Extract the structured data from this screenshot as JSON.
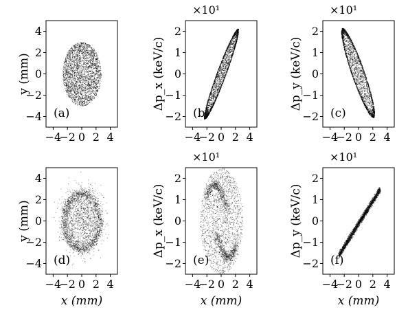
{
  "chart_data": [
    {
      "panel": "(a)",
      "type": "scatter",
      "xlabel": "",
      "ylabel": "y (mm)",
      "xlim": [
        -5,
        5
      ],
      "ylim": [
        -5,
        5
      ],
      "xticks": [
        -4,
        -2,
        0,
        2,
        4
      ],
      "yticks": [
        -4,
        -2,
        0,
        2,
        4
      ],
      "xtick_labels": [
        "−4",
        "−2",
        "0",
        "2",
        "4"
      ],
      "ytick_labels": [
        "−4",
        "−2",
        "0",
        "2",
        "4"
      ],
      "multiplier": "",
      "distribution": {
        "shape": "filled-ellipse",
        "center": [
          0,
          0
        ],
        "semi_axes": [
          2.7,
          3.0
        ],
        "tilt_deg": 0,
        "points": 2600
      }
    },
    {
      "panel": "(b)",
      "type": "scatter",
      "xlabel": "",
      "ylabel": "Δp_x (keV/c)",
      "xlim": [
        -5,
        5
      ],
      "ylim": [
        -2.5,
        2.5
      ],
      "xticks": [
        -4,
        -2,
        0,
        2,
        4
      ],
      "yticks": [
        -2,
        -1,
        0,
        1,
        2
      ],
      "xtick_labels": [
        "−4",
        "−2",
        "0",
        "2",
        "4"
      ],
      "ytick_labels": [
        "−2",
        "−1",
        "0",
        "1",
        "2"
      ],
      "multiplier": "×10¹",
      "distribution": {
        "shape": "thin-shell-ellipse",
        "from": [
          -2.4,
          -2.1
        ],
        "to": [
          2.4,
          2.1
        ],
        "minor_width": 0.9,
        "points": 2600
      }
    },
    {
      "panel": "(c)",
      "type": "scatter",
      "xlabel": "",
      "ylabel": "Δp_y (keV/c)",
      "xlim": [
        -5,
        5
      ],
      "ylim": [
        -2.5,
        2.5
      ],
      "xticks": [
        -4,
        -2,
        0,
        2,
        4
      ],
      "yticks": [
        -2,
        -1,
        0,
        1,
        2
      ],
      "xtick_labels": [
        "−4",
        "−2",
        "0",
        "2",
        "4"
      ],
      "ytick_labels": [
        "−2",
        "−1",
        "0",
        "1",
        "2"
      ],
      "multiplier": "×10¹",
      "distribution": {
        "shape": "thin-shell-ellipse",
        "from": [
          -2.4,
          2.1
        ],
        "to": [
          2.2,
          -2.0
        ],
        "minor_width": 1.3,
        "points": 2600
      }
    },
    {
      "panel": "(d)",
      "type": "scatter",
      "xlabel": "x (mm)",
      "ylabel": "y (mm)",
      "xlim": [
        -5,
        5
      ],
      "ylim": [
        -5,
        5
      ],
      "xticks": [
        -4,
        -2,
        0,
        2,
        4
      ],
      "yticks": [
        -4,
        -2,
        0,
        2,
        4
      ],
      "xtick_labels": [
        "−4",
        "−2",
        "0",
        "2",
        "4"
      ],
      "ytick_labels": [
        "−4",
        "−2",
        "0",
        "2",
        "4"
      ],
      "multiplier": "",
      "distribution": {
        "shape": "ring-with-core",
        "center": [
          0,
          0
        ],
        "ring_semi_axes": [
          2.5,
          2.6
        ],
        "points": 3000
      }
    },
    {
      "panel": "(e)",
      "type": "scatter",
      "xlabel": "x (mm)",
      "ylabel": "Δp_x (keV/c)",
      "xlim": [
        -5,
        5
      ],
      "ylim": [
        -2.5,
        2.5
      ],
      "xticks": [
        -4,
        -2,
        0,
        2,
        4
      ],
      "yticks": [
        -2,
        -1,
        0,
        1,
        2
      ],
      "xtick_labels": [
        "−4",
        "−2",
        "0",
        "2",
        "4"
      ],
      "ytick_labels": [
        "−2",
        "−1",
        "0",
        "1",
        "2"
      ],
      "multiplier": "×10¹",
      "distribution": {
        "shape": "ellipse-with-s-arms",
        "center": [
          0,
          0
        ],
        "semi_axes": [
          3.0,
          2.5
        ],
        "points": 2800
      }
    },
    {
      "panel": "(f)",
      "type": "scatter",
      "xlabel": "x (mm)",
      "ylabel": "Δp_y (keV/c)",
      "xlim": [
        -5,
        5
      ],
      "ylim": [
        -2.5,
        2.5
      ],
      "xticks": [
        -4,
        -2,
        0,
        2,
        4
      ],
      "yticks": [
        -2,
        -1,
        0,
        1,
        2
      ],
      "xtick_labels": [
        "−4",
        "−2",
        "0",
        "2",
        "4"
      ],
      "ytick_labels": [
        "−2",
        "−1",
        "0",
        "1",
        "2"
      ],
      "multiplier": "×10¹",
      "distribution": {
        "shape": "narrow-tilted-band",
        "from": [
          -2.8,
          -1.6
        ],
        "to": [
          3.0,
          1.5
        ],
        "minor_width": 0.35,
        "points": 2600
      }
    }
  ]
}
